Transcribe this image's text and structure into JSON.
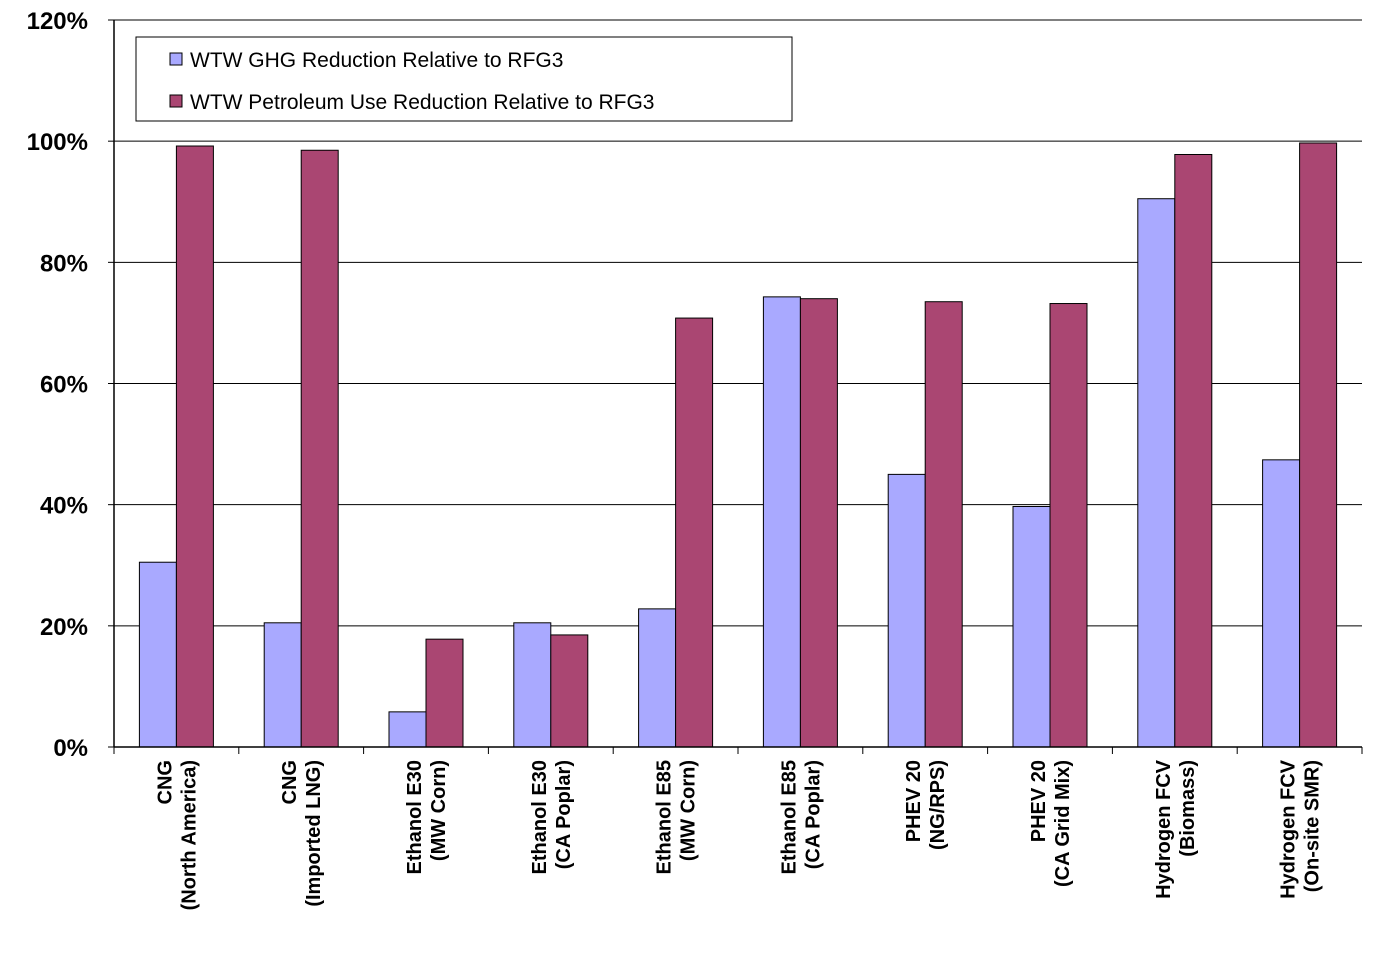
{
  "chart_data": {
    "type": "bar",
    "title": "",
    "xlabel": "",
    "ylabel": "",
    "ylim": [
      0,
      1.2
    ],
    "yticks": [
      "0%",
      "20%",
      "40%",
      "60%",
      "80%",
      "100%",
      "120%"
    ],
    "grid": true,
    "legend_position": "top-left",
    "categories": [
      [
        "CNG",
        "(North  America)"
      ],
      [
        "CNG",
        "(Imported LNG)"
      ],
      [
        "Ethanol E30",
        "(MW Corn)"
      ],
      [
        "Ethanol E30",
        "(CA Poplar)"
      ],
      [
        "Ethanol E85",
        "(MW Corn)"
      ],
      [
        "Ethanol E85",
        "(CA Poplar)"
      ],
      [
        "PHEV 20",
        "(NG/RPS)"
      ],
      [
        "PHEV 20",
        "(CA Grid Mix)"
      ],
      [
        "Hydrogen FCV",
        "(Biomass)"
      ],
      [
        "Hydrogen FCV",
        "(On-site SMR)"
      ]
    ],
    "series": [
      {
        "name": "WTW GHG Reduction Relative to RFG3",
        "color": "#a9a9ff",
        "values": [
          0.305,
          0.205,
          0.058,
          0.205,
          0.228,
          0.743,
          0.45,
          0.397,
          0.905,
          0.474
        ]
      },
      {
        "name": "WTW Petroleum Use Reduction Relative to RFG3",
        "color": "#aa4672",
        "values": [
          0.992,
          0.985,
          0.178,
          0.185,
          0.708,
          0.74,
          0.735,
          0.732,
          0.978,
          0.997
        ]
      }
    ]
  }
}
